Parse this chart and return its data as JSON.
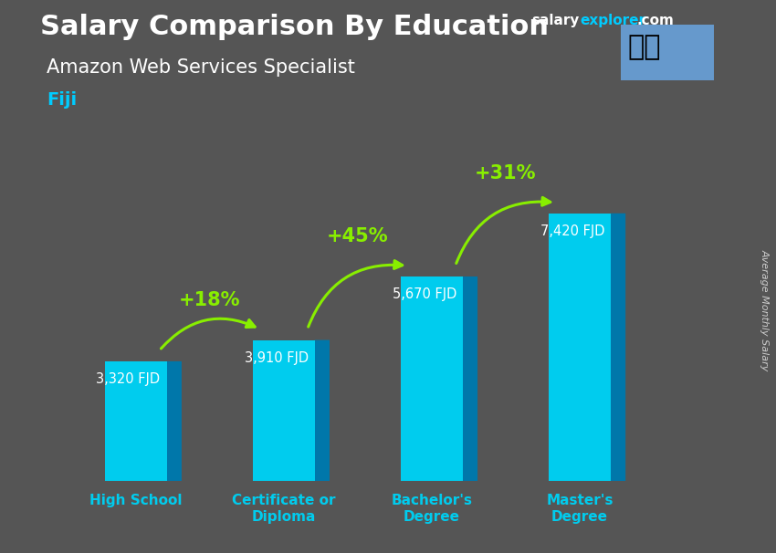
{
  "title": "Salary Comparison By Education",
  "subtitle": "Amazon Web Services Specialist",
  "country": "Fiji",
  "ylabel": "Average Monthly Salary",
  "categories": [
    "High School",
    "Certificate or\nDiploma",
    "Bachelor's\nDegree",
    "Master's\nDegree"
  ],
  "values": [
    3320,
    3910,
    5670,
    7420
  ],
  "value_labels": [
    "3,320 FJD",
    "3,910 FJD",
    "5,670 FJD",
    "7,420 FJD"
  ],
  "pct_labels": [
    "+18%",
    "+45%",
    "+31%"
  ],
  "bar_color_front": "#00ccee",
  "bar_color_side": "#0077aa",
  "bar_color_top": "#00aacc",
  "bg_color": "#555555",
  "title_color": "#ffffff",
  "subtitle_color": "#ffffff",
  "country_color": "#00ccff",
  "value_color": "#ffffff",
  "pct_color": "#88ee00",
  "arrow_color": "#88ee00",
  "ylabel_color": "#cccccc",
  "site_salary_color": "#ffffff",
  "site_explorer_color": "#00ccff",
  "site_com_color": "#ffffff",
  "ylim": [
    0,
    9500
  ],
  "bar_width": 0.42,
  "bar_depth": 0.1,
  "title_fontsize": 22,
  "subtitle_fontsize": 15,
  "country_fontsize": 14,
  "value_fontsize": 10.5,
  "pct_fontsize": 15,
  "tick_fontsize": 11,
  "site_fontsize": 11
}
